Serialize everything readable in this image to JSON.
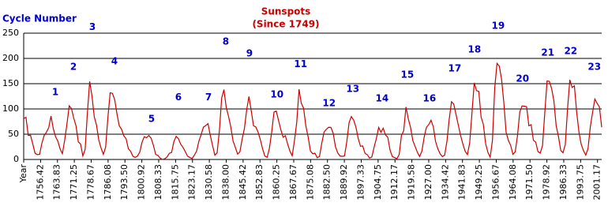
{
  "chart_data": {
    "type": "line",
    "title": "Sunspots",
    "subtitle": "(Since 1749)",
    "title_color": "#cc0000",
    "annotation_title": "Cycle Number",
    "annotation_color": "#0000cc",
    "color": "#cc0000",
    "grid": true,
    "xlim": [
      1749,
      2003
    ],
    "ylim": [
      0,
      250
    ],
    "yticks": [
      0,
      50,
      100,
      150,
      200,
      250
    ],
    "xticks": [
      {
        "value": 1749,
        "label": "Year"
      },
      1756.42,
      1763.83,
      1771.25,
      1778.67,
      1786.08,
      {
        "value": 1793.5,
        "label": "1793.50"
      },
      1800.92,
      1808.33,
      1815.75,
      1823.17,
      1830.58,
      {
        "value": 1838,
        "label": "1838.00"
      },
      1845.42,
      1852.83,
      1860.25,
      1867.67,
      1875.08,
      {
        "value": 1882.5,
        "label": "1882.50"
      },
      1889.92,
      1897.33,
      1904.75,
      1912.17,
      1919.58,
      {
        "value": 1927,
        "label": "1927.00"
      },
      1934.42,
      1941.83,
      1949.25,
      1956.67,
      1964.08,
      {
        "value": 1971.5,
        "label": "1971.50"
      },
      1978.92,
      1986.33,
      1993.75,
      2001.17
    ],
    "x": [
      1749,
      1750,
      1751,
      1752,
      1753,
      1754,
      1755,
      1756,
      1757,
      1758,
      1759,
      1760,
      1761,
      1762,
      1763,
      1764,
      1765,
      1766,
      1767,
      1768,
      1769,
      1770,
      1771,
      1772,
      1773,
      1774,
      1775,
      1776,
      1777,
      1778,
      1779,
      1780,
      1781,
      1782,
      1783,
      1784,
      1785,
      1786,
      1787,
      1788,
      1789,
      1790,
      1791,
      1792,
      1793,
      1794,
      1795,
      1796,
      1797,
      1798,
      1799,
      1800,
      1801,
      1802,
      1803,
      1804,
      1805,
      1806,
      1807,
      1808,
      1809,
      1810,
      1811,
      1812,
      1813,
      1814,
      1815,
      1816,
      1817,
      1818,
      1819,
      1820,
      1821,
      1822,
      1823,
      1824,
      1825,
      1826,
      1827,
      1828,
      1829,
      1830,
      1831,
      1832,
      1833,
      1834,
      1835,
      1836,
      1837,
      1838,
      1839,
      1840,
      1841,
      1842,
      1843,
      1844,
      1845,
      1846,
      1847,
      1848,
      1849,
      1850,
      1851,
      1852,
      1853,
      1854,
      1855,
      1856,
      1857,
      1858,
      1859,
      1860,
      1861,
      1862,
      1863,
      1864,
      1865,
      1866,
      1867,
      1868,
      1869,
      1870,
      1871,
      1872,
      1873,
      1874,
      1875,
      1876,
      1877,
      1878,
      1879,
      1880,
      1881,
      1882,
      1883,
      1884,
      1885,
      1886,
      1887,
      1888,
      1889,
      1890,
      1891,
      1892,
      1893,
      1894,
      1895,
      1896,
      1897,
      1898,
      1899,
      1900,
      1901,
      1902,
      1903,
      1904,
      1905,
      1906,
      1907,
      1908,
      1909,
      1910,
      1911,
      1912,
      1913,
      1914,
      1915,
      1916,
      1917,
      1918,
      1919,
      1920,
      1921,
      1922,
      1923,
      1924,
      1925,
      1926,
      1927,
      1928,
      1929,
      1930,
      1931,
      1932,
      1933,
      1934,
      1935,
      1936,
      1937,
      1938,
      1939,
      1940,
      1941,
      1942,
      1943,
      1944,
      1945,
      1946,
      1947,
      1948,
      1949,
      1950,
      1951,
      1952,
      1953,
      1954,
      1955,
      1956,
      1957,
      1958,
      1959,
      1960,
      1961,
      1962,
      1963,
      1964,
      1965,
      1966,
      1967,
      1968,
      1969,
      1970,
      1971,
      1972,
      1973,
      1974,
      1975,
      1976,
      1977,
      1978,
      1979,
      1980,
      1981,
      1982,
      1983,
      1984,
      1985,
      1986,
      1987,
      1988,
      1989,
      1990,
      1991,
      1992,
      1993,
      1994,
      1995,
      1996,
      1997,
      1998,
      1999,
      2000,
      2001,
      2002,
      2003
    ],
    "values": [
      80.9,
      83.4,
      47.7,
      47.8,
      30.7,
      12.2,
      9.6,
      10.2,
      32.4,
      47.6,
      54.0,
      62.9,
      85.9,
      61.2,
      45.1,
      36.4,
      20.9,
      11.4,
      37.8,
      69.8,
      106.1,
      100.8,
      81.6,
      66.5,
      34.8,
      30.6,
      7.0,
      19.8,
      92.5,
      154.4,
      125.9,
      84.8,
      68.1,
      38.5,
      22.8,
      10.2,
      24.1,
      82.9,
      132.0,
      130.9,
      118.1,
      89.9,
      66.6,
      60.0,
      46.9,
      41.0,
      21.3,
      16.0,
      6.4,
      4.1,
      6.8,
      14.5,
      34.0,
      45.0,
      43.1,
      47.5,
      42.2,
      28.1,
      10.1,
      8.1,
      2.5,
      0.0,
      1.4,
      5.0,
      12.2,
      13.9,
      35.4,
      45.8,
      41.1,
      30.1,
      23.9,
      15.6,
      6.6,
      4.0,
      1.8,
      8.5,
      16.6,
      36.3,
      49.6,
      64.2,
      67.0,
      70.9,
      47.8,
      27.5,
      8.5,
      13.2,
      56.9,
      121.5,
      138.3,
      103.2,
      85.7,
      64.6,
      36.7,
      24.2,
      10.7,
      15.0,
      40.1,
      61.5,
      98.5,
      124.7,
      96.3,
      66.6,
      64.5,
      54.1,
      39.0,
      20.6,
      6.7,
      4.3,
      22.7,
      54.8,
      93.8,
      95.8,
      77.2,
      59.1,
      44.0,
      47.0,
      30.5,
      16.3,
      7.3,
      37.6,
      74.0,
      139.0,
      111.2,
      101.6,
      66.2,
      44.7,
      17.0,
      11.3,
      12.4,
      3.4,
      6.0,
      32.3,
      54.3,
      59.7,
      63.7,
      63.5,
      52.2,
      25.4,
      13.1,
      6.8,
      6.3,
      7.1,
      35.6,
      73.0,
      85.1,
      78.0,
      64.0,
      41.8,
      26.2,
      26.7,
      12.1,
      9.5,
      2.7,
      5.0,
      24.4,
      42.0,
      63.5,
      53.8,
      62.0,
      48.5,
      43.9,
      18.6,
      5.7,
      3.6,
      1.4,
      9.6,
      47.4,
      57.1,
      103.9,
      80.6,
      63.6,
      37.6,
      26.1,
      14.2,
      5.8,
      16.7,
      44.3,
      63.9,
      69.0,
      77.8,
      64.9,
      35.7,
      21.2,
      11.1,
      5.7,
      8.7,
      36.1,
      79.7,
      114.4,
      109.6,
      88.8,
      67.8,
      47.5,
      30.6,
      16.3,
      9.6,
      33.2,
      92.6,
      151.6,
      136.3,
      134.7,
      83.9,
      69.4,
      31.5,
      13.9,
      4.4,
      38.0,
      141.7,
      190.2,
      184.8,
      159.0,
      112.3,
      53.9,
      37.6,
      27.9,
      10.2,
      15.1,
      47.0,
      93.8,
      105.9,
      105.5,
      104.5,
      66.6,
      68.9,
      38.0,
      34.5,
      15.5,
      12.6,
      27.5,
      92.5,
      155.4,
      154.6,
      140.4,
      115.9,
      66.6,
      45.9,
      17.9,
      13.4,
      29.4,
      100.2,
      157.6,
      142.6,
      145.7,
      94.3,
      54.6,
      29.9,
      17.5,
      8.6,
      21.5,
      64.3,
      93.3,
      119.6,
      111.0,
      104.0,
      63.7
    ],
    "annotations": [
      {
        "text": "1",
        "x": 1762.9,
        "y": 133
      },
      {
        "text": "2",
        "x": 1770.9,
        "y": 183
      },
      {
        "text": "3",
        "x": 1779.2,
        "y": 262
      },
      {
        "text": "4",
        "x": 1788.9,
        "y": 194
      },
      {
        "text": "5",
        "x": 1805.2,
        "y": 80
      },
      {
        "text": "6",
        "x": 1817,
        "y": 123
      },
      {
        "text": "7",
        "x": 1830.2,
        "y": 123
      },
      {
        "text": "8",
        "x": 1837.8,
        "y": 233
      },
      {
        "text": "9",
        "x": 1848.2,
        "y": 209
      },
      {
        "text": "10",
        "x": 1860.3,
        "y": 128
      },
      {
        "text": "11",
        "x": 1870.7,
        "y": 188
      },
      {
        "text": "12",
        "x": 1883.2,
        "y": 111
      },
      {
        "text": "13",
        "x": 1893.6,
        "y": 139
      },
      {
        "text": "14",
        "x": 1906.5,
        "y": 120
      },
      {
        "text": "15",
        "x": 1917.6,
        "y": 167
      },
      {
        "text": "16",
        "x": 1927.3,
        "y": 120
      },
      {
        "text": "17",
        "x": 1938.4,
        "y": 180
      },
      {
        "text": "18",
        "x": 1947.1,
        "y": 217
      },
      {
        "text": "19",
        "x": 1957.5,
        "y": 264
      },
      {
        "text": "20",
        "x": 1968.2,
        "y": 159
      },
      {
        "text": "21",
        "x": 1979.3,
        "y": 211
      },
      {
        "text": "22",
        "x": 1989.4,
        "y": 214
      },
      {
        "text": "23",
        "x": 1999.8,
        "y": 183
      }
    ]
  }
}
